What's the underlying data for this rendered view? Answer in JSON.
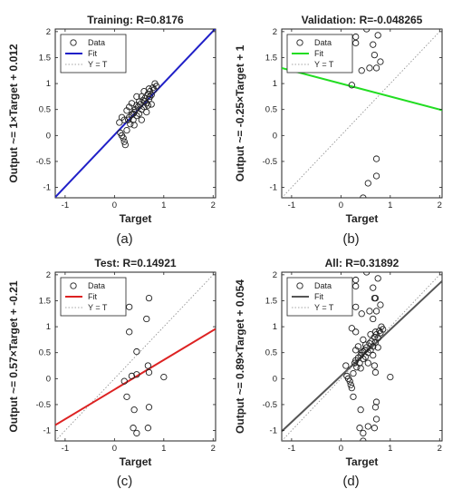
{
  "chart_data": [
    {
      "type": "scatter",
      "title": "Training: R=0.8176",
      "xlabel": "Target",
      "ylabel": "Output ~= 1×Target + 0.012",
      "panel_label": "(a)",
      "xlim": [
        -1.2,
        2.05
      ],
      "ylim": [
        -1.2,
        2.05
      ],
      "xticks": [
        -1,
        0,
        1,
        2
      ],
      "yticks": [
        -1,
        -0.5,
        0,
        0.5,
        1,
        1.5,
        2
      ],
      "legend": [
        "Data",
        "Fit",
        "Y = T"
      ],
      "legend_position": "top-left",
      "fit": {
        "slope": 1.0,
        "intercept": 0.012,
        "color": "#2020c8"
      },
      "points": [
        [
          0.1,
          0.25
        ],
        [
          0.12,
          0.05
        ],
        [
          0.15,
          0.0
        ],
        [
          0.18,
          -0.05
        ],
        [
          0.2,
          -0.12
        ],
        [
          0.22,
          -0.18
        ],
        [
          0.25,
          0.1
        ],
        [
          0.28,
          0.3
        ],
        [
          0.3,
          0.35
        ],
        [
          0.32,
          0.22
        ],
        [
          0.35,
          0.4
        ],
        [
          0.38,
          0.3
        ],
        [
          0.4,
          0.45
        ],
        [
          0.42,
          0.5
        ],
        [
          0.45,
          0.38
        ],
        [
          0.48,
          0.55
        ],
        [
          0.5,
          0.42
        ],
        [
          0.52,
          0.6
        ],
        [
          0.55,
          0.5
        ],
        [
          0.58,
          0.68
        ],
        [
          0.6,
          0.55
        ],
        [
          0.62,
          0.72
        ],
        [
          0.65,
          0.62
        ],
        [
          0.68,
          0.8
        ],
        [
          0.7,
          0.7
        ],
        [
          0.72,
          0.85
        ],
        [
          0.75,
          0.78
        ],
        [
          0.78,
          0.92
        ],
        [
          0.8,
          0.88
        ],
        [
          0.82,
          1.0
        ],
        [
          0.85,
          0.95
        ],
        [
          0.35,
          0.62
        ],
        [
          0.45,
          0.75
        ],
        [
          0.55,
          0.3
        ],
        [
          0.65,
          0.45
        ],
        [
          0.3,
          0.55
        ],
        [
          0.25,
          0.48
        ],
        [
          0.4,
          0.2
        ],
        [
          0.5,
          0.65
        ],
        [
          0.6,
          0.85
        ],
        [
          0.7,
          0.9
        ],
        [
          0.75,
          0.6
        ],
        [
          0.2,
          0.3
        ],
        [
          0.15,
          0.35
        ],
        [
          0.55,
          0.75
        ],
        [
          0.45,
          0.58
        ],
        [
          0.38,
          0.42
        ],
        [
          0.62,
          0.66
        ],
        [
          0.68,
          0.58
        ],
        [
          0.72,
          0.75
        ]
      ]
    },
    {
      "type": "scatter",
      "title": "Validation: R=-0.048265",
      "xlabel": "Target",
      "ylabel": "Output ~= -0.25×Target + 1",
      "panel_label": "(b)",
      "xlim": [
        -1.2,
        2.05
      ],
      "ylim": [
        -1.2,
        2.05
      ],
      "xticks": [
        -1,
        0,
        1,
        2
      ],
      "yticks": [
        -1,
        -0.5,
        0,
        0.5,
        1,
        1.5,
        2
      ],
      "legend": [
        "Data",
        "Fit",
        "Y = T"
      ],
      "legend_position": "top-left",
      "fit": {
        "slope": -0.25,
        "intercept": 1.0,
        "color": "#22dd22"
      },
      "points": [
        [
          0.52,
          2.05
        ],
        [
          0.3,
          1.9
        ],
        [
          0.3,
          1.78
        ],
        [
          0.75,
          1.93
        ],
        [
          0.65,
          1.75
        ],
        [
          0.68,
          1.55
        ],
        [
          0.8,
          1.42
        ],
        [
          0.72,
          1.3
        ],
        [
          0.58,
          1.3
        ],
        [
          0.42,
          1.25
        ],
        [
          0.22,
          0.97
        ],
        [
          0.72,
          -0.45
        ],
        [
          0.72,
          -0.78
        ],
        [
          0.55,
          -0.92
        ],
        [
          0.45,
          -1.2
        ]
      ]
    },
    {
      "type": "scatter",
      "title": "Test: R=0.14921",
      "xlabel": "Target",
      "ylabel": "Output ~= 0.57×Target + -0.21",
      "panel_label": "(c)",
      "xlim": [
        -1.2,
        2.05
      ],
      "ylim": [
        -1.2,
        2.05
      ],
      "xticks": [
        -1,
        0,
        1,
        2
      ],
      "yticks": [
        -1,
        -0.5,
        0,
        0.5,
        1,
        1.5,
        2
      ],
      "legend": [
        "Data",
        "Fit",
        "Y = T"
      ],
      "legend_position": "top-left",
      "fit": {
        "slope": 0.57,
        "intercept": -0.21,
        "color": "#dd2222"
      },
      "points": [
        [
          0.7,
          1.55
        ],
        [
          0.3,
          1.38
        ],
        [
          0.65,
          1.15
        ],
        [
          0.3,
          0.9
        ],
        [
          0.45,
          0.52
        ],
        [
          0.68,
          0.25
        ],
        [
          0.7,
          0.12
        ],
        [
          0.45,
          0.08
        ],
        [
          0.35,
          0.05
        ],
        [
          1.0,
          0.03
        ],
        [
          0.2,
          -0.05
        ],
        [
          0.25,
          -0.35
        ],
        [
          0.7,
          -0.55
        ],
        [
          0.4,
          -0.6
        ],
        [
          0.38,
          -0.95
        ],
        [
          0.68,
          -0.95
        ],
        [
          0.45,
          -1.05
        ]
      ]
    },
    {
      "type": "scatter",
      "title": "All: R=0.31892",
      "xlabel": "Target",
      "ylabel": "Output ~= 0.89×Target + 0.054",
      "panel_label": "(d)",
      "xlim": [
        -1.2,
        2.05
      ],
      "ylim": [
        -1.2,
        2.05
      ],
      "xticks": [
        -1,
        0,
        1,
        2
      ],
      "yticks": [
        -1,
        -0.5,
        0,
        0.5,
        1,
        1.5,
        2
      ],
      "legend": [
        "Data",
        "Fit",
        "Y = T"
      ],
      "legend_position": "top-left",
      "fit": {
        "slope": 0.89,
        "intercept": 0.054,
        "color": "#555555"
      },
      "points": [
        [
          0.52,
          2.05
        ],
        [
          0.3,
          1.9
        ],
        [
          0.75,
          1.93
        ],
        [
          0.3,
          1.78
        ],
        [
          0.65,
          1.75
        ],
        [
          0.68,
          1.55
        ],
        [
          0.7,
          1.55
        ],
        [
          0.8,
          1.42
        ],
        [
          0.3,
          1.38
        ],
        [
          0.72,
          1.3
        ],
        [
          0.58,
          1.3
        ],
        [
          0.42,
          1.25
        ],
        [
          0.65,
          1.15
        ],
        [
          0.22,
          0.97
        ],
        [
          0.3,
          0.9
        ],
        [
          0.45,
          0.52
        ],
        [
          1.0,
          0.03
        ],
        [
          0.72,
          -0.45
        ],
        [
          0.72,
          -0.78
        ],
        [
          0.55,
          -0.92
        ],
        [
          0.45,
          -1.2
        ],
        [
          0.7,
          -0.55
        ],
        [
          0.4,
          -0.6
        ],
        [
          0.38,
          -0.95
        ],
        [
          0.68,
          -0.95
        ],
        [
          0.45,
          -1.05
        ],
        [
          0.25,
          -0.35
        ],
        [
          0.1,
          0.25
        ],
        [
          0.12,
          0.05
        ],
        [
          0.15,
          0.0
        ],
        [
          0.18,
          -0.05
        ],
        [
          0.2,
          -0.12
        ],
        [
          0.22,
          -0.18
        ],
        [
          0.25,
          0.1
        ],
        [
          0.28,
          0.3
        ],
        [
          0.3,
          0.35
        ],
        [
          0.32,
          0.22
        ],
        [
          0.35,
          0.4
        ],
        [
          0.38,
          0.3
        ],
        [
          0.4,
          0.45
        ],
        [
          0.42,
          0.5
        ],
        [
          0.45,
          0.38
        ],
        [
          0.48,
          0.55
        ],
        [
          0.5,
          0.42
        ],
        [
          0.52,
          0.6
        ],
        [
          0.55,
          0.5
        ],
        [
          0.58,
          0.68
        ],
        [
          0.6,
          0.55
        ],
        [
          0.62,
          0.72
        ],
        [
          0.65,
          0.62
        ],
        [
          0.68,
          0.8
        ],
        [
          0.7,
          0.7
        ],
        [
          0.72,
          0.85
        ],
        [
          0.75,
          0.78
        ],
        [
          0.78,
          0.92
        ],
        [
          0.8,
          0.88
        ],
        [
          0.82,
          1.0
        ],
        [
          0.85,
          0.95
        ],
        [
          0.35,
          0.62
        ],
        [
          0.45,
          0.75
        ],
        [
          0.55,
          0.3
        ],
        [
          0.65,
          0.45
        ],
        [
          0.3,
          0.55
        ],
        [
          0.4,
          0.2
        ],
        [
          0.5,
          0.65
        ],
        [
          0.6,
          0.85
        ],
        [
          0.7,
          0.9
        ],
        [
          0.75,
          0.6
        ],
        [
          0.68,
          0.25
        ],
        [
          0.7,
          0.12
        ]
      ]
    }
  ]
}
